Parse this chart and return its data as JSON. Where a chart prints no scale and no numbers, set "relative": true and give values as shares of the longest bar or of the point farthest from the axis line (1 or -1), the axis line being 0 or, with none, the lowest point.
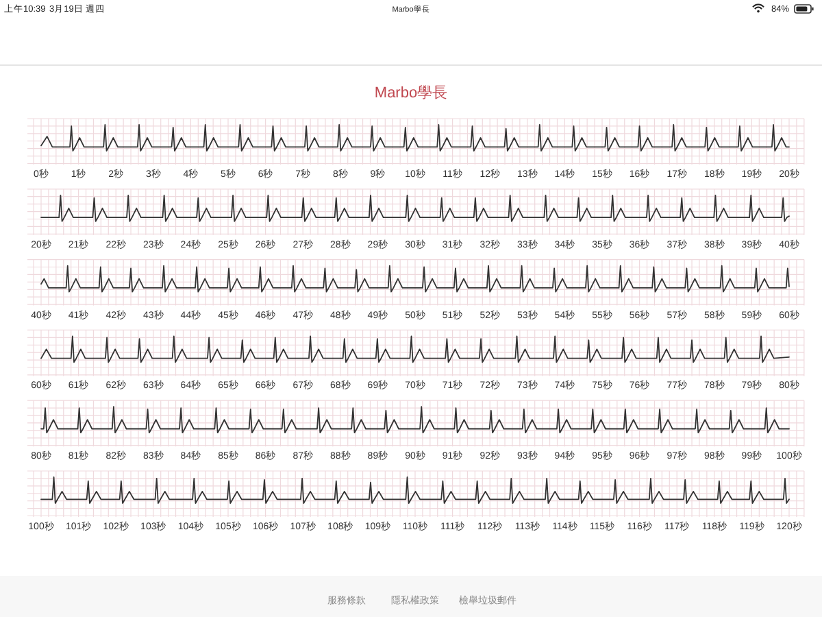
{
  "chart_data": [
    {
      "type": "line",
      "relative": true,
      "title": "Marbo學長",
      "annotations": [
        "上午10:39",
        "3月19日 週四",
        "Marbo學長",
        "84%",
        "服務條款",
        "隱私權政策",
        "檢舉垃圾郵件"
      ],
      "color": "#333333",
      "grid": true,
      "xlim": [
        0,
        20
      ],
      "xticks": [
        {
          "value": 0,
          "label": "0秒"
        },
        {
          "value": 1,
          "label": "1秒"
        },
        {
          "value": 2,
          "label": "2秒"
        },
        {
          "value": 3,
          "label": "3秒"
        },
        {
          "value": 4,
          "label": "4秒"
        },
        {
          "value": 5,
          "label": "5秒"
        },
        {
          "value": 6,
          "label": "6秒"
        },
        {
          "value": 7,
          "label": "7秒"
        },
        {
          "value": 8,
          "label": "8秒"
        },
        {
          "value": 9,
          "label": "9秒"
        },
        {
          "value": 10,
          "label": "10秒"
        },
        {
          "value": 11,
          "label": "11秒"
        },
        {
          "value": 12,
          "label": "12秒"
        },
        {
          "value": 13,
          "label": "13秒"
        },
        {
          "value": 14,
          "label": "14秒"
        },
        {
          "value": 15,
          "label": "15秒"
        },
        {
          "value": 16,
          "label": "16秒"
        },
        {
          "value": 17,
          "label": "17秒"
        },
        {
          "value": 18,
          "label": "18秒"
        },
        {
          "value": 19,
          "label": "19秒"
        },
        {
          "value": 20,
          "label": "20秒"
        }
      ],
      "x": [
        0,
        0.16,
        0.3,
        0.77,
        0.81,
        0.85,
        0.91,
        1.03,
        1.15,
        1.67,
        1.71,
        1.75,
        1.81,
        1.93,
        2.05,
        2.58,
        2.62,
        2.66,
        2.72,
        2.84,
        2.96,
        3.49,
        3.53,
        3.57,
        3.63,
        3.75,
        3.87,
        4.35,
        4.39,
        4.43,
        4.49,
        4.61,
        4.73,
        5.28,
        5.32,
        5.36,
        5.42,
        5.54,
        5.66,
        6.16,
        6.2,
        6.24,
        6.3,
        6.42,
        6.54,
        7.05,
        7.09,
        7.13,
        7.19,
        7.31,
        7.43,
        7.93,
        7.97,
        8.01,
        8.07,
        8.19,
        8.31,
        8.81,
        8.85,
        8.89,
        8.95,
        9.07,
        9.19,
        9.7,
        9.74,
        9.78,
        9.84,
        9.96,
        10.08,
        10.59,
        10.63,
        10.67,
        10.73,
        10.85,
        10.97,
        11.49,
        11.53,
        11.57,
        11.63,
        11.75,
        11.87,
        12.39,
        12.43,
        12.47,
        12.53,
        12.65,
        12.77,
        13.29,
        13.33,
        13.37,
        13.43,
        13.55,
        13.67,
        14.2,
        14.24,
        14.28,
        14.34,
        14.46,
        14.58,
        15.08,
        15.12,
        15.16,
        15.22,
        15.34,
        15.46,
        15.96,
        16,
        16.04,
        16.1,
        16.22,
        16.34,
        16.87,
        16.91,
        16.95,
        17.01,
        17.13,
        17.25,
        17.75,
        17.79,
        17.83,
        17.89,
        18.01,
        18.13,
        18.64,
        18.68,
        18.72,
        18.78,
        18.9,
        19.02,
        19.54,
        19.58,
        19.62,
        19.68,
        19.8,
        19.92,
        20
      ],
      "values": [
        0.2,
        0.55,
        0.15,
        0.15,
        0.95,
        0,
        0.15,
        0.5,
        0.15,
        0.15,
        1,
        0,
        0.15,
        0.5,
        0.15,
        0.15,
        1,
        0,
        0.15,
        0.5,
        0.15,
        0.15,
        0.9,
        0,
        0.15,
        0.5,
        0.15,
        0.15,
        1,
        0,
        0.15,
        0.5,
        0.15,
        0.15,
        1,
        0,
        0.15,
        0.5,
        0.15,
        0.15,
        0.95,
        0,
        0.15,
        0.5,
        0.15,
        0.15,
        0.95,
        0,
        0.15,
        0.5,
        0.15,
        0.15,
        1,
        0,
        0.15,
        0.5,
        0.15,
        0.15,
        0.95,
        0,
        0.15,
        0.5,
        0.15,
        0.15,
        0.9,
        0,
        0.15,
        0.5,
        0.15,
        0.15,
        1,
        0,
        0.15,
        0.5,
        0.15,
        0.15,
        0.95,
        0,
        0.15,
        0.5,
        0.15,
        0.15,
        0.85,
        0,
        0.15,
        0.5,
        0.15,
        0.15,
        1,
        0,
        0.15,
        0.5,
        0.15,
        0.15,
        0.95,
        0,
        0.15,
        0.5,
        0.15,
        0.15,
        0.9,
        0,
        0.15,
        0.5,
        0.15,
        0.15,
        0.95,
        0,
        0.15,
        0.5,
        0.15,
        0.15,
        1,
        0,
        0.15,
        0.5,
        0.15,
        0.15,
        0.9,
        0,
        0.15,
        0.5,
        0.15,
        0.15,
        0.95,
        0,
        0.15,
        0.5,
        0.15,
        0.15,
        1,
        0,
        0.15,
        0.5,
        0.15,
        0.15
      ]
    },
    {
      "type": "line",
      "relative": true,
      "color": "#333333",
      "grid": true,
      "xlim": [
        20,
        40
      ],
      "xticks": [
        {
          "value": 20,
          "label": "20秒"
        },
        {
          "value": 21,
          "label": "21秒"
        },
        {
          "value": 22,
          "label": "22秒"
        },
        {
          "value": 23,
          "label": "23秒"
        },
        {
          "value": 24,
          "label": "24秒"
        },
        {
          "value": 25,
          "label": "25秒"
        },
        {
          "value": 26,
          "label": "26秒"
        },
        {
          "value": 27,
          "label": "27秒"
        },
        {
          "value": 28,
          "label": "28秒"
        },
        {
          "value": 29,
          "label": "29秒"
        },
        {
          "value": 30,
          "label": "30秒"
        },
        {
          "value": 31,
          "label": "31秒"
        },
        {
          "value": 32,
          "label": "32秒"
        },
        {
          "value": 33,
          "label": "33秒"
        },
        {
          "value": 34,
          "label": "34秒"
        },
        {
          "value": 35,
          "label": "35秒"
        },
        {
          "value": 36,
          "label": "36秒"
        },
        {
          "value": 37,
          "label": "37秒"
        },
        {
          "value": 38,
          "label": "38秒"
        },
        {
          "value": 39,
          "label": "39秒"
        },
        {
          "value": 40,
          "label": "40秒"
        }
      ],
      "x": [
        20,
        20.48,
        20.52,
        20.56,
        20.62,
        20.74,
        20.86,
        21.38,
        21.42,
        21.46,
        21.52,
        21.64,
        21.76,
        22.29,
        22.33,
        22.37,
        22.43,
        22.55,
        22.67,
        23.25,
        23.29,
        23.33,
        23.39,
        23.51,
        23.63,
        24.16,
        24.2,
        24.24,
        24.3,
        24.42,
        24.54,
        25.09,
        25.13,
        25.17,
        25.23,
        25.35,
        25.47,
        26.03,
        26.07,
        26.11,
        26.17,
        26.29,
        26.41,
        26.97,
        27.01,
        27.05,
        27.11,
        27.23,
        27.35,
        27.85,
        27.89,
        27.93,
        27.99,
        28.11,
        28.23,
        28.77,
        28.81,
        28.85,
        28.91,
        29.03,
        29.15,
        29.75,
        29.79,
        29.83,
        29.89,
        30.01,
        30.13,
        30.67,
        30.71,
        30.75,
        30.81,
        30.93,
        31.05,
        31.57,
        31.61,
        31.65,
        31.71,
        31.83,
        31.95,
        32.5,
        32.54,
        32.58,
        32.64,
        32.76,
        32.88,
        33.45,
        33.49,
        33.53,
        33.59,
        33.71,
        33.83,
        34.33,
        34.37,
        34.41,
        34.47,
        34.59,
        34.71,
        35.24,
        35.28,
        35.32,
        35.38,
        35.5,
        35.62,
        36.19,
        36.23,
        36.27,
        36.33,
        36.45,
        36.57,
        37.09,
        37.13,
        37.17,
        37.23,
        37.35,
        37.47,
        37.99,
        38.03,
        38.07,
        38.13,
        38.25,
        38.37,
        38.94,
        38.98,
        39.02,
        39.08,
        39.2,
        39.32,
        39.8,
        39.84,
        39.88,
        39.94,
        40
      ],
      "values": [
        0.15,
        0.15,
        1,
        0,
        0.15,
        0.5,
        0.15,
        0.15,
        0.9,
        0,
        0.15,
        0.5,
        0.15,
        0.15,
        1,
        0,
        0.15,
        0.5,
        0.15,
        0.15,
        1,
        0,
        0.15,
        0.5,
        0.15,
        0.15,
        0.9,
        0,
        0.15,
        0.5,
        0.15,
        0.15,
        1,
        0,
        0.15,
        0.5,
        0.15,
        0.15,
        1,
        0,
        0.15,
        0.5,
        0.15,
        0.15,
        0.9,
        0,
        0.15,
        0.5,
        0.15,
        0.15,
        0.9,
        0,
        0.15,
        0.5,
        0.15,
        0.15,
        1,
        0,
        0.15,
        0.5,
        0.15,
        0.15,
        1,
        0,
        0.15,
        0.5,
        0.15,
        0.15,
        0.9,
        0,
        0.15,
        0.5,
        0.15,
        0.15,
        0.9,
        0,
        0.15,
        0.5,
        0.15,
        0.15,
        1,
        0,
        0.15,
        0.5,
        0.15,
        0.15,
        1,
        0,
        0.15,
        0.5,
        0.15,
        0.15,
        0.9,
        0,
        0.15,
        0.5,
        0.15,
        0.15,
        1,
        0,
        0.15,
        0.5,
        0.15,
        0.15,
        1,
        0,
        0.15,
        0.5,
        0.15,
        0.15,
        0.9,
        0,
        0.15,
        0.5,
        0.15,
        0.15,
        1,
        0,
        0.15,
        0.5,
        0.15,
        0.15,
        1,
        0,
        0.15,
        0.5,
        0.15,
        0.15,
        0.9,
        0,
        0.15,
        0.2
      ]
    },
    {
      "type": "line",
      "relative": true,
      "color": "#333333",
      "grid": true,
      "xlim": [
        40,
        60
      ],
      "xticks": [
        {
          "value": 40,
          "label": "40秒"
        },
        {
          "value": 41,
          "label": "41秒"
        },
        {
          "value": 42,
          "label": "42秒"
        },
        {
          "value": 43,
          "label": "43秒"
        },
        {
          "value": 44,
          "label": "44秒"
        },
        {
          "value": 45,
          "label": "45秒"
        },
        {
          "value": 46,
          "label": "46秒"
        },
        {
          "value": 47,
          "label": "47秒"
        },
        {
          "value": 48,
          "label": "48秒"
        },
        {
          "value": 49,
          "label": "49秒"
        },
        {
          "value": 50,
          "label": "50秒"
        },
        {
          "value": 51,
          "label": "51秒"
        },
        {
          "value": 52,
          "label": "52秒"
        },
        {
          "value": 53,
          "label": "53秒"
        },
        {
          "value": 54,
          "label": "54秒"
        },
        {
          "value": 55,
          "label": "55秒"
        },
        {
          "value": 56,
          "label": "56秒"
        },
        {
          "value": 57,
          "label": "57秒"
        },
        {
          "value": 58,
          "label": "58秒"
        },
        {
          "value": 59,
          "label": "59秒"
        },
        {
          "value": 60,
          "label": "60秒"
        }
      ],
      "x": [
        40,
        40.08,
        40.2,
        40.67,
        40.71,
        40.75,
        40.81,
        40.93,
        41.05,
        41.55,
        41.59,
        41.63,
        41.69,
        41.81,
        41.93,
        42.36,
        42.4,
        42.44,
        42.5,
        42.62,
        42.74,
        43.24,
        43.28,
        43.32,
        43.38,
        43.5,
        43.62,
        44.12,
        44.16,
        44.2,
        44.26,
        44.38,
        44.5,
        44.98,
        45.02,
        45.06,
        45.12,
        45.24,
        45.36,
        45.82,
        45.86,
        45.9,
        45.96,
        46.08,
        46.2,
        46.7,
        46.74,
        46.78,
        46.84,
        46.96,
        47.08,
        47.55,
        47.59,
        47.63,
        47.69,
        47.81,
        47.93,
        48.39,
        48.43,
        48.47,
        48.53,
        48.65,
        48.77,
        49.28,
        49.32,
        49.36,
        49.42,
        49.54,
        49.66,
        50.2,
        50.24,
        50.28,
        50.34,
        50.46,
        50.58,
        51.04,
        51.08,
        51.12,
        51.18,
        51.3,
        51.42,
        51.92,
        51.96,
        52,
        52.06,
        52.18,
        52.3,
        52.81,
        52.85,
        52.89,
        52.95,
        53.07,
        53.19,
        53.68,
        53.72,
        53.76,
        53.82,
        53.94,
        54.06,
        54.56,
        54.6,
        54.64,
        54.7,
        54.82,
        54.94,
        55.45,
        55.49,
        55.53,
        55.59,
        55.71,
        55.83,
        56.34,
        56.38,
        56.42,
        56.48,
        56.6,
        56.72,
        57.22,
        57.26,
        57.3,
        57.36,
        57.48,
        57.6,
        58.16,
        58.2,
        58.24,
        58.3,
        58.42,
        58.54,
        59.08,
        59.12,
        59.16,
        59.22,
        59.34,
        59.46,
        59.92,
        59.96,
        60
      ],
      "values": [
        0.3,
        0.5,
        0.15,
        0.15,
        1,
        0,
        0.15,
        0.5,
        0.15,
        0.15,
        0.95,
        0,
        0.15,
        0.5,
        0.15,
        0.15,
        0.9,
        0,
        0.15,
        0.5,
        0.15,
        0.15,
        1,
        0,
        0.15,
        0.5,
        0.15,
        0.15,
        0.95,
        0,
        0.15,
        0.5,
        0.15,
        0.15,
        0.9,
        0,
        0.15,
        0.5,
        0.15,
        0.15,
        0.95,
        0,
        0.15,
        0.5,
        0.15,
        0.15,
        1,
        0,
        0.15,
        0.5,
        0.15,
        0.15,
        0.9,
        0,
        0.15,
        0.5,
        0.15,
        0.15,
        0.85,
        0,
        0.15,
        0.5,
        0.15,
        0.15,
        1,
        0,
        0.15,
        0.5,
        0.15,
        0.15,
        0.95,
        0,
        0.15,
        0.5,
        0.15,
        0.15,
        0.9,
        0,
        0.15,
        0.5,
        0.15,
        0.15,
        1,
        0,
        0.15,
        0.5,
        0.15,
        0.15,
        1,
        0,
        0.15,
        0.5,
        0.15,
        0.15,
        0.9,
        0,
        0.15,
        0.5,
        0.15,
        0.15,
        1,
        0,
        0.15,
        0.5,
        0.15,
        0.15,
        1,
        0,
        0.15,
        0.5,
        0.15,
        0.15,
        0.95,
        0,
        0.15,
        0.5,
        0.15,
        0.15,
        0.9,
        0,
        0.15,
        0.5,
        0.15,
        0.15,
        1,
        0,
        0.15,
        0.5,
        0.15,
        0.15,
        0.9,
        0,
        0.15,
        0.5,
        0.15,
        0.15,
        0.9,
        0.2
      ]
    },
    {
      "type": "line",
      "relative": true,
      "color": "#333333",
      "grid": true,
      "xlim": [
        60,
        80
      ],
      "xticks": [
        {
          "value": 60,
          "label": "60秒"
        },
        {
          "value": 61,
          "label": "61秒"
        },
        {
          "value": 62,
          "label": "62秒"
        },
        {
          "value": 63,
          "label": "63秒"
        },
        {
          "value": 64,
          "label": "64秒"
        },
        {
          "value": 65,
          "label": "65秒"
        },
        {
          "value": 66,
          "label": "66秒"
        },
        {
          "value": 67,
          "label": "67秒"
        },
        {
          "value": 68,
          "label": "68秒"
        },
        {
          "value": 69,
          "label": "69秒"
        },
        {
          "value": 70,
          "label": "70秒"
        },
        {
          "value": 71,
          "label": "71秒"
        },
        {
          "value": 72,
          "label": "72秒"
        },
        {
          "value": 73,
          "label": "73秒"
        },
        {
          "value": 74,
          "label": "74秒"
        },
        {
          "value": 75,
          "label": "75秒"
        },
        {
          "value": 76,
          "label": "76秒"
        },
        {
          "value": 77,
          "label": "77秒"
        },
        {
          "value": 78,
          "label": "78秒"
        },
        {
          "value": 79,
          "label": "79秒"
        },
        {
          "value": 80,
          "label": "80秒"
        }
      ],
      "x": [
        60,
        60.14,
        60.28,
        60.8,
        60.84,
        60.88,
        60.94,
        61.06,
        61.18,
        61.72,
        61.76,
        61.8,
        61.86,
        61.98,
        62.1,
        62.59,
        62.63,
        62.67,
        62.73,
        62.85,
        62.97,
        63.51,
        63.55,
        63.59,
        63.65,
        63.77,
        63.89,
        64.45,
        64.49,
        64.53,
        64.59,
        64.71,
        64.83,
        65.34,
        65.38,
        65.42,
        65.48,
        65.6,
        65.72,
        66.22,
        66.26,
        66.3,
        66.36,
        66.48,
        66.6,
        67.16,
        67.2,
        67.24,
        67.3,
        67.42,
        67.54,
        68.07,
        68.11,
        68.15,
        68.21,
        68.33,
        68.45,
        68.95,
        68.99,
        69.03,
        69.09,
        69.21,
        69.33,
        69.86,
        69.9,
        69.94,
        70,
        70.12,
        70.24,
        70.81,
        70.85,
        70.89,
        70.95,
        71.07,
        71.19,
        71.72,
        71.76,
        71.8,
        71.86,
        71.98,
        72.1,
        72.68,
        72.72,
        72.76,
        72.82,
        72.94,
        73.06,
        73.7,
        73.74,
        73.78,
        73.84,
        73.96,
        74.08,
        74.6,
        74.64,
        74.68,
        74.74,
        74.86,
        74.98,
        75.53,
        75.57,
        75.61,
        75.67,
        75.79,
        75.91,
        76.46,
        76.5,
        76.54,
        76.6,
        76.72,
        76.84,
        77.36,
        77.4,
        77.44,
        77.5,
        77.62,
        77.74,
        78.27,
        78.31,
        78.35,
        78.41,
        78.53,
        78.65,
        79.21,
        79.25,
        79.29,
        79.35,
        79.47,
        79.59,
        80
      ],
      "values": [
        0.15,
        0.5,
        0.15,
        0.15,
        1,
        0,
        0.15,
        0.5,
        0.15,
        0.15,
        0.95,
        0,
        0.15,
        0.5,
        0.15,
        0.15,
        0.9,
        0,
        0.15,
        0.5,
        0.15,
        0.15,
        1,
        0,
        0.15,
        0.5,
        0.15,
        0.15,
        0.95,
        0,
        0.15,
        0.5,
        0.15,
        0.15,
        0.85,
        0,
        0.15,
        0.5,
        0.15,
        0.15,
        0.95,
        0,
        0.15,
        0.5,
        0.15,
        0.15,
        1,
        0,
        0.15,
        0.5,
        0.15,
        0.15,
        0.9,
        0,
        0.15,
        0.5,
        0.15,
        0.15,
        0.9,
        0,
        0.15,
        0.5,
        0.15,
        0.15,
        1,
        0,
        0.15,
        0.5,
        0.15,
        0.15,
        0.9,
        0,
        0.15,
        0.5,
        0.15,
        0.15,
        0.9,
        0,
        0.15,
        0.5,
        0.15,
        0.15,
        1,
        0,
        0.15,
        0.5,
        0.15,
        0.15,
        1,
        0,
        0.15,
        0.5,
        0.15,
        0.15,
        0.85,
        0,
        0.15,
        0.5,
        0.15,
        0.15,
        0.95,
        0,
        0.15,
        0.5,
        0.15,
        0.15,
        0.95,
        0,
        0.15,
        0.5,
        0.15,
        0.15,
        0.85,
        0,
        0.15,
        0.5,
        0.15,
        0.15,
        0.95,
        0,
        0.15,
        0.5,
        0.15,
        0.15,
        1,
        0,
        0.15,
        0.5,
        0.15,
        0.2
      ]
    },
    {
      "type": "line",
      "relative": true,
      "color": "#333333",
      "grid": true,
      "xlim": [
        80,
        100
      ],
      "xticks": [
        {
          "value": 80,
          "label": "80秒"
        },
        {
          "value": 81,
          "label": "81秒"
        },
        {
          "value": 82,
          "label": "82秒"
        },
        {
          "value": 83,
          "label": "83秒"
        },
        {
          "value": 84,
          "label": "84秒"
        },
        {
          "value": 85,
          "label": "85秒"
        },
        {
          "value": 86,
          "label": "86秒"
        },
        {
          "value": 87,
          "label": "87秒"
        },
        {
          "value": 88,
          "label": "88秒"
        },
        {
          "value": 89,
          "label": "89秒"
        },
        {
          "value": 90,
          "label": "90秒"
        },
        {
          "value": 91,
          "label": "91秒"
        },
        {
          "value": 92,
          "label": "92秒"
        },
        {
          "value": 93,
          "label": "93秒"
        },
        {
          "value": 94,
          "label": "94秒"
        },
        {
          "value": 95,
          "label": "95秒"
        },
        {
          "value": 96,
          "label": "96秒"
        },
        {
          "value": 97,
          "label": "97秒"
        },
        {
          "value": 98,
          "label": "98秒"
        },
        {
          "value": 99,
          "label": "99秒"
        },
        {
          "value": 100,
          "label": "100秒"
        }
      ],
      "x": [
        80,
        80.07,
        80.11,
        80.15,
        80.21,
        80.33,
        80.45,
        80.98,
        81.02,
        81.06,
        81.12,
        81.24,
        81.36,
        81.9,
        81.94,
        81.98,
        82.04,
        82.16,
        82.28,
        82.81,
        82.85,
        82.89,
        82.95,
        83.07,
        83.19,
        83.7,
        83.74,
        83.78,
        83.84,
        83.96,
        84.08,
        84.64,
        84.68,
        84.72,
        84.78,
        84.9,
        85.02,
        85.56,
        85.6,
        85.64,
        85.7,
        85.82,
        85.94,
        86.44,
        86.48,
        86.52,
        86.58,
        86.7,
        86.82,
        87.38,
        87.42,
        87.46,
        87.52,
        87.64,
        87.76,
        88.3,
        88.34,
        88.38,
        88.44,
        88.56,
        88.68,
        89.18,
        89.22,
        89.26,
        89.32,
        89.44,
        89.56,
        90.13,
        90.17,
        90.21,
        90.27,
        90.39,
        90.51,
        91.05,
        91.09,
        91.13,
        91.19,
        91.31,
        91.43,
        91.99,
        92.03,
        92.07,
        92.13,
        92.25,
        92.37,
        92.87,
        92.91,
        92.95,
        93.01,
        93.13,
        93.25,
        93.79,
        93.83,
        93.87,
        93.93,
        94.05,
        94.17,
        94.71,
        94.75,
        94.79,
        94.85,
        94.97,
        95.09,
        95.58,
        95.62,
        95.66,
        95.72,
        95.84,
        95.96,
        96.5,
        96.54,
        96.58,
        96.64,
        96.76,
        96.88,
        97.49,
        97.53,
        97.57,
        97.63,
        97.75,
        97.87,
        98.4,
        98.44,
        98.48,
        98.54,
        98.66,
        98.78,
        99.35,
        99.39,
        99.43,
        99.49,
        99.61,
        99.73,
        100
      ],
      "values": [
        0.15,
        0.15,
        0.95,
        0,
        0.15,
        0.5,
        0.15,
        0.15,
        0.95,
        0,
        0.15,
        0.5,
        0.15,
        0.15,
        1,
        0,
        0.15,
        0.5,
        0.15,
        0.15,
        0.9,
        0,
        0.15,
        0.5,
        0.15,
        0.15,
        0.95,
        0,
        0.15,
        0.5,
        0.15,
        0.15,
        0.95,
        0,
        0.15,
        0.5,
        0.15,
        0.15,
        0.9,
        0,
        0.15,
        0.5,
        0.15,
        0.15,
        0.9,
        0,
        0.15,
        0.5,
        0.15,
        0.15,
        0.95,
        0,
        0.15,
        0.5,
        0.15,
        0.15,
        0.95,
        0,
        0.15,
        0.5,
        0.15,
        0.15,
        0.85,
        0,
        0.15,
        0.5,
        0.15,
        0.15,
        1,
        0,
        0.15,
        0.5,
        0.15,
        0.15,
        0.95,
        0,
        0.15,
        0.5,
        0.15,
        0.15,
        0.85,
        0,
        0.15,
        0.5,
        0.15,
        0.15,
        0.9,
        0,
        0.15,
        0.5,
        0.15,
        0.15,
        0.9,
        0,
        0.15,
        0.5,
        0.15,
        0.15,
        0.9,
        0,
        0.15,
        0.5,
        0.15,
        0.15,
        0.9,
        0,
        0.15,
        0.5,
        0.15,
        0.15,
        0.9,
        0,
        0.15,
        0.5,
        0.15,
        0.15,
        0.9,
        0,
        0.15,
        0.5,
        0.15,
        0.15,
        0.85,
        0,
        0.15,
        0.5,
        0.15,
        0.15,
        0.95,
        0,
        0.15,
        0.5,
        0.15,
        0.15
      ]
    },
    {
      "type": "line",
      "relative": true,
      "color": "#333333",
      "grid": true,
      "xlim": [
        100,
        120
      ],
      "xticks": [
        {
          "value": 100,
          "label": "100秒"
        },
        {
          "value": 101,
          "label": "101秒"
        },
        {
          "value": 102,
          "label": "102秒"
        },
        {
          "value": 103,
          "label": "103秒"
        },
        {
          "value": 104,
          "label": "104秒"
        },
        {
          "value": 105,
          "label": "105秒"
        },
        {
          "value": 106,
          "label": "106秒"
        },
        {
          "value": 107,
          "label": "107秒"
        },
        {
          "value": 108,
          "label": "108秒"
        },
        {
          "value": 109,
          "label": "109秒"
        },
        {
          "value": 110,
          "label": "110秒"
        },
        {
          "value": 111,
          "label": "111秒"
        },
        {
          "value": 112,
          "label": "112秒"
        },
        {
          "value": 113,
          "label": "113秒"
        },
        {
          "value": 114,
          "label": "114秒"
        },
        {
          "value": 115,
          "label": "115秒"
        },
        {
          "value": 116,
          "label": "116秒"
        },
        {
          "value": 117,
          "label": "117秒"
        },
        {
          "value": 118,
          "label": "118秒"
        },
        {
          "value": 119,
          "label": "119秒"
        },
        {
          "value": 120,
          "label": "120秒"
        }
      ],
      "x": [
        100,
        100.3,
        100.34,
        100.38,
        100.44,
        100.56,
        100.68,
        101.22,
        101.26,
        101.3,
        101.36,
        101.48,
        101.6,
        102.1,
        102.14,
        102.18,
        102.24,
        102.36,
        102.48,
        103.05,
        103.09,
        103.13,
        103.19,
        103.31,
        103.43,
        104.05,
        104.09,
        104.13,
        104.19,
        104.31,
        104.43,
        104.98,
        105.02,
        105.06,
        105.12,
        105.24,
        105.36,
        105.93,
        105.97,
        106.01,
        106.07,
        106.19,
        106.31,
        106.94,
        106.98,
        107.02,
        107.08,
        107.2,
        107.32,
        107.85,
        107.89,
        107.93,
        107.99,
        108.11,
        108.23,
        108.77,
        108.81,
        108.85,
        108.91,
        109.03,
        109.15,
        109.75,
        109.79,
        109.83,
        109.89,
        110.01,
        110.13,
        110.7,
        110.74,
        110.78,
        110.84,
        110.96,
        111.08,
        111.62,
        111.66,
        111.7,
        111.76,
        111.88,
        112,
        112.53,
        112.57,
        112.61,
        112.67,
        112.79,
        112.91,
        113.48,
        113.52,
        113.56,
        113.62,
        113.74,
        113.86,
        114.37,
        114.41,
        114.45,
        114.51,
        114.63,
        114.75,
        115.31,
        115.35,
        115.39,
        115.45,
        115.57,
        115.69,
        116.26,
        116.3,
        116.34,
        116.4,
        116.52,
        116.64,
        117.18,
        117.22,
        117.26,
        117.32,
        117.44,
        117.56,
        118.09,
        118.13,
        118.17,
        118.23,
        118.35,
        118.47,
        118.94,
        118.98,
        119.02,
        119.08,
        119.2,
        119.32,
        119.85,
        119.89,
        119.93,
        120
      ],
      "values": [
        0.15,
        0.15,
        1,
        0,
        0.15,
        0.45,
        0.15,
        0.15,
        0.85,
        0,
        0.15,
        0.45,
        0.15,
        0.15,
        0.85,
        0,
        0.15,
        0.45,
        0.15,
        0.15,
        0.95,
        0,
        0.15,
        0.45,
        0.15,
        0.15,
        0.95,
        0,
        0.15,
        0.45,
        0.15,
        0.15,
        0.85,
        0,
        0.15,
        0.45,
        0.15,
        0.15,
        0.9,
        0,
        0.15,
        0.45,
        0.15,
        0.15,
        0.95,
        0,
        0.15,
        0.45,
        0.15,
        0.15,
        0.85,
        0,
        0.15,
        0.45,
        0.15,
        0.15,
        0.8,
        0,
        0.15,
        0.45,
        0.15,
        0.15,
        1,
        0,
        0.15,
        0.45,
        0.15,
        0.15,
        0.85,
        0,
        0.15,
        0.45,
        0.15,
        0.15,
        0.85,
        0,
        0.15,
        0.45,
        0.15,
        0.15,
        0.95,
        0,
        0.15,
        0.45,
        0.15,
        0.15,
        0.95,
        0,
        0.15,
        0.45,
        0.15,
        0.15,
        0.85,
        0,
        0.15,
        0.45,
        0.15,
        0.15,
        0.9,
        0,
        0.15,
        0.45,
        0.15,
        0.15,
        0.95,
        0,
        0.15,
        0.45,
        0.15,
        0.15,
        0.9,
        0,
        0.15,
        0.45,
        0.15,
        0.15,
        0.85,
        0,
        0.15,
        0.45,
        0.15,
        0.15,
        0.85,
        0,
        0.15,
        0.45,
        0.15,
        0.15,
        0.95,
        0,
        0.15
      ]
    }
  ]
}
